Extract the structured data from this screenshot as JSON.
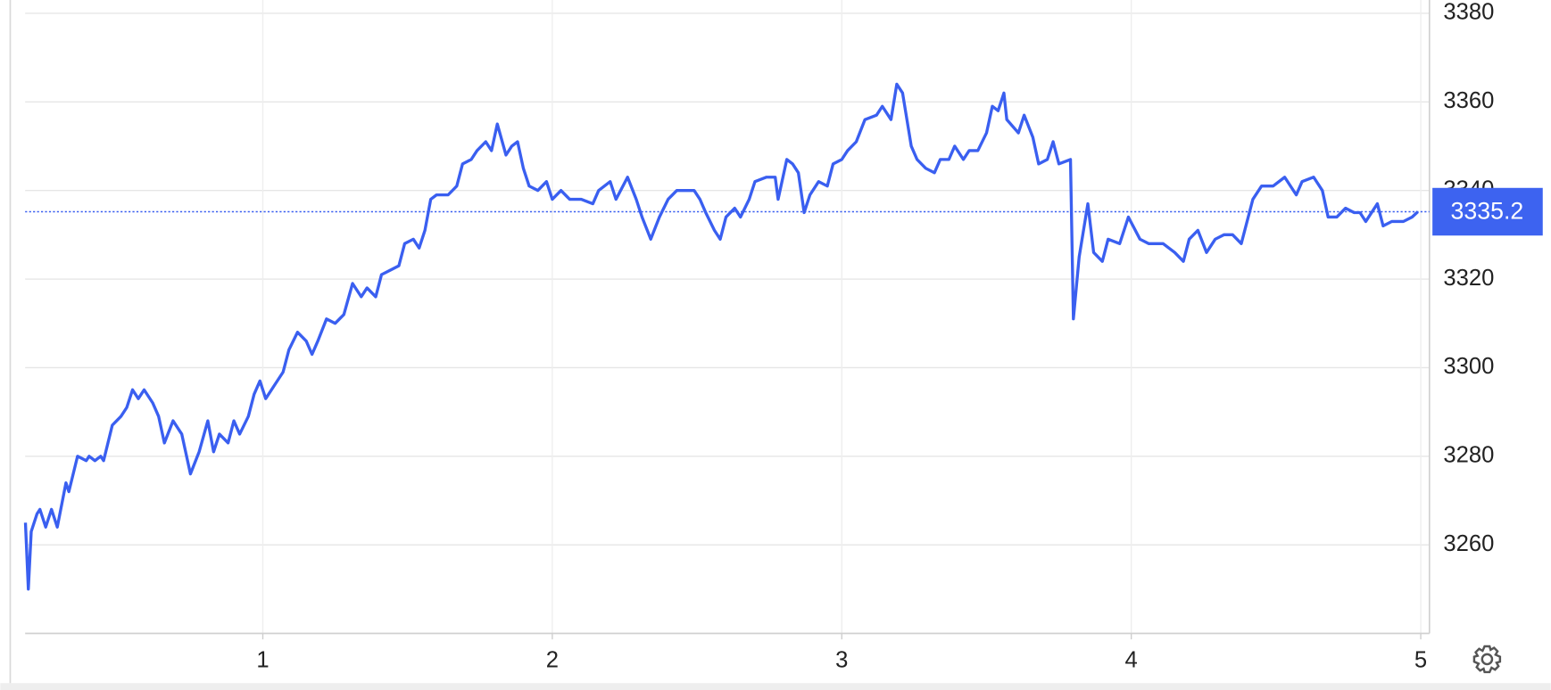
{
  "chart_data": {
    "type": "line",
    "x": [
      0.18,
      0.19,
      0.2,
      0.22,
      0.23,
      0.25,
      0.27,
      0.29,
      0.32,
      0.33,
      0.36,
      0.39,
      0.4,
      0.42,
      0.44,
      0.45,
      0.48,
      0.51,
      0.53,
      0.55,
      0.57,
      0.59,
      0.62,
      0.64,
      0.66,
      0.69,
      0.72,
      0.75,
      0.78,
      0.81,
      0.83,
      0.85,
      0.88,
      0.9,
      0.92,
      0.95,
      0.97,
      0.99,
      1.01,
      1.04,
      1.07,
      1.09,
      1.12,
      1.15,
      1.17,
      1.19,
      1.22,
      1.25,
      1.28,
      1.31,
      1.34,
      1.36,
      1.39,
      1.41,
      1.44,
      1.47,
      1.49,
      1.52,
      1.54,
      1.56,
      1.58,
      1.6,
      1.64,
      1.67,
      1.69,
      1.72,
      1.74,
      1.77,
      1.79,
      1.81,
      1.84,
      1.86,
      1.88,
      1.9,
      1.92,
      1.95,
      1.98,
      2.0,
      2.03,
      2.06,
      2.1,
      2.14,
      2.16,
      2.2,
      2.22,
      2.26,
      2.29,
      2.31,
      2.34,
      2.37,
      2.4,
      2.43,
      2.49,
      2.51,
      2.53,
      2.56,
      2.58,
      2.6,
      2.63,
      2.65,
      2.68,
      2.7,
      2.74,
      2.77,
      2.78,
      2.81,
      2.83,
      2.85,
      2.87,
      2.89,
      2.92,
      2.95,
      2.97,
      3.0,
      3.02,
      3.05,
      3.08,
      3.12,
      3.14,
      3.17,
      3.19,
      3.21,
      3.24,
      3.26,
      3.29,
      3.32,
      3.34,
      3.37,
      3.39,
      3.42,
      3.44,
      3.47,
      3.5,
      3.52,
      3.54,
      3.56,
      3.57,
      3.61,
      3.63,
      3.66,
      3.68,
      3.71,
      3.73,
      3.75,
      3.79,
      3.8,
      3.82,
      3.85,
      3.87,
      3.9,
      3.92,
      3.96,
      3.99,
      4.03,
      4.06,
      4.11,
      4.15,
      4.18,
      4.2,
      4.23,
      4.26,
      4.29,
      4.32,
      4.35,
      4.38,
      4.42,
      4.45,
      4.49,
      4.53,
      4.57,
      4.59,
      4.63,
      4.66,
      4.68,
      4.71,
      4.74,
      4.77,
      4.79,
      4.81,
      4.85,
      4.87,
      4.9,
      4.94,
      4.97,
      4.99
    ],
    "series": [
      {
        "color": "#3a5ff0",
        "values": [
          3265,
          3250,
          3263,
          3267,
          3268,
          3264,
          3268,
          3264,
          3274,
          3272,
          3280,
          3279,
          3280,
          3279,
          3280,
          3279,
          3287,
          3289,
          3291,
          3295,
          3293,
          3295,
          3292,
          3289,
          3283,
          3288,
          3285,
          3276,
          3281,
          3288,
          3281,
          3285,
          3283,
          3288,
          3285,
          3289,
          3294,
          3297,
          3293,
          3296,
          3299,
          3304,
          3308,
          3306,
          3303,
          3306,
          3311,
          3310,
          3312,
          3319,
          3316,
          3318,
          3316,
          3321,
          3322,
          3323,
          3328,
          3329,
          3327,
          3331,
          3338,
          3339,
          3339,
          3341,
          3346,
          3347,
          3349,
          3351,
          3349,
          3355,
          3348,
          3350,
          3351,
          3345,
          3341,
          3340,
          3342,
          3338,
          3340,
          3338,
          3338,
          3337,
          3340,
          3342,
          3338,
          3343,
          3338,
          3334,
          3329,
          3334,
          3338,
          3340,
          3340,
          3338,
          3335,
          3331,
          3329,
          3334,
          3336,
          3334,
          3338,
          3342,
          3343,
          3343,
          3338,
          3347,
          3346,
          3344,
          3335,
          3339,
          3342,
          3341,
          3346,
          3347,
          3349,
          3351,
          3356,
          3357,
          3359,
          3356,
          3364,
          3362,
          3350,
          3347,
          3345,
          3344,
          3347,
          3347,
          3350,
          3347,
          3349,
          3349,
          3353,
          3359,
          3358,
          3362,
          3356,
          3353,
          3357,
          3352,
          3346,
          3347,
          3351,
          3346,
          3347,
          3311,
          3325,
          3337,
          3326,
          3324,
          3329,
          3328,
          3334,
          3329,
          3328,
          3328,
          3326,
          3324,
          3329,
          3331,
          3326,
          3329,
          3330,
          3330,
          3328,
          3338,
          3341,
          3341,
          3343,
          3339,
          3342,
          3343,
          3340,
          3334,
          3334,
          3336,
          3335,
          3335,
          3333,
          3337,
          3332,
          3333,
          3333,
          3334,
          3335.2
        ]
      }
    ],
    "last_value": 3335.2,
    "xlim": [
      0.179,
      5.03
    ],
    "xticks": [
      1,
      2,
      3,
      4,
      5
    ],
    "ylim": [
      3240,
      3383
    ],
    "yticks": [
      3260,
      3280,
      3300,
      3320,
      3340,
      3360,
      3380
    ],
    "grid": true
  }
}
